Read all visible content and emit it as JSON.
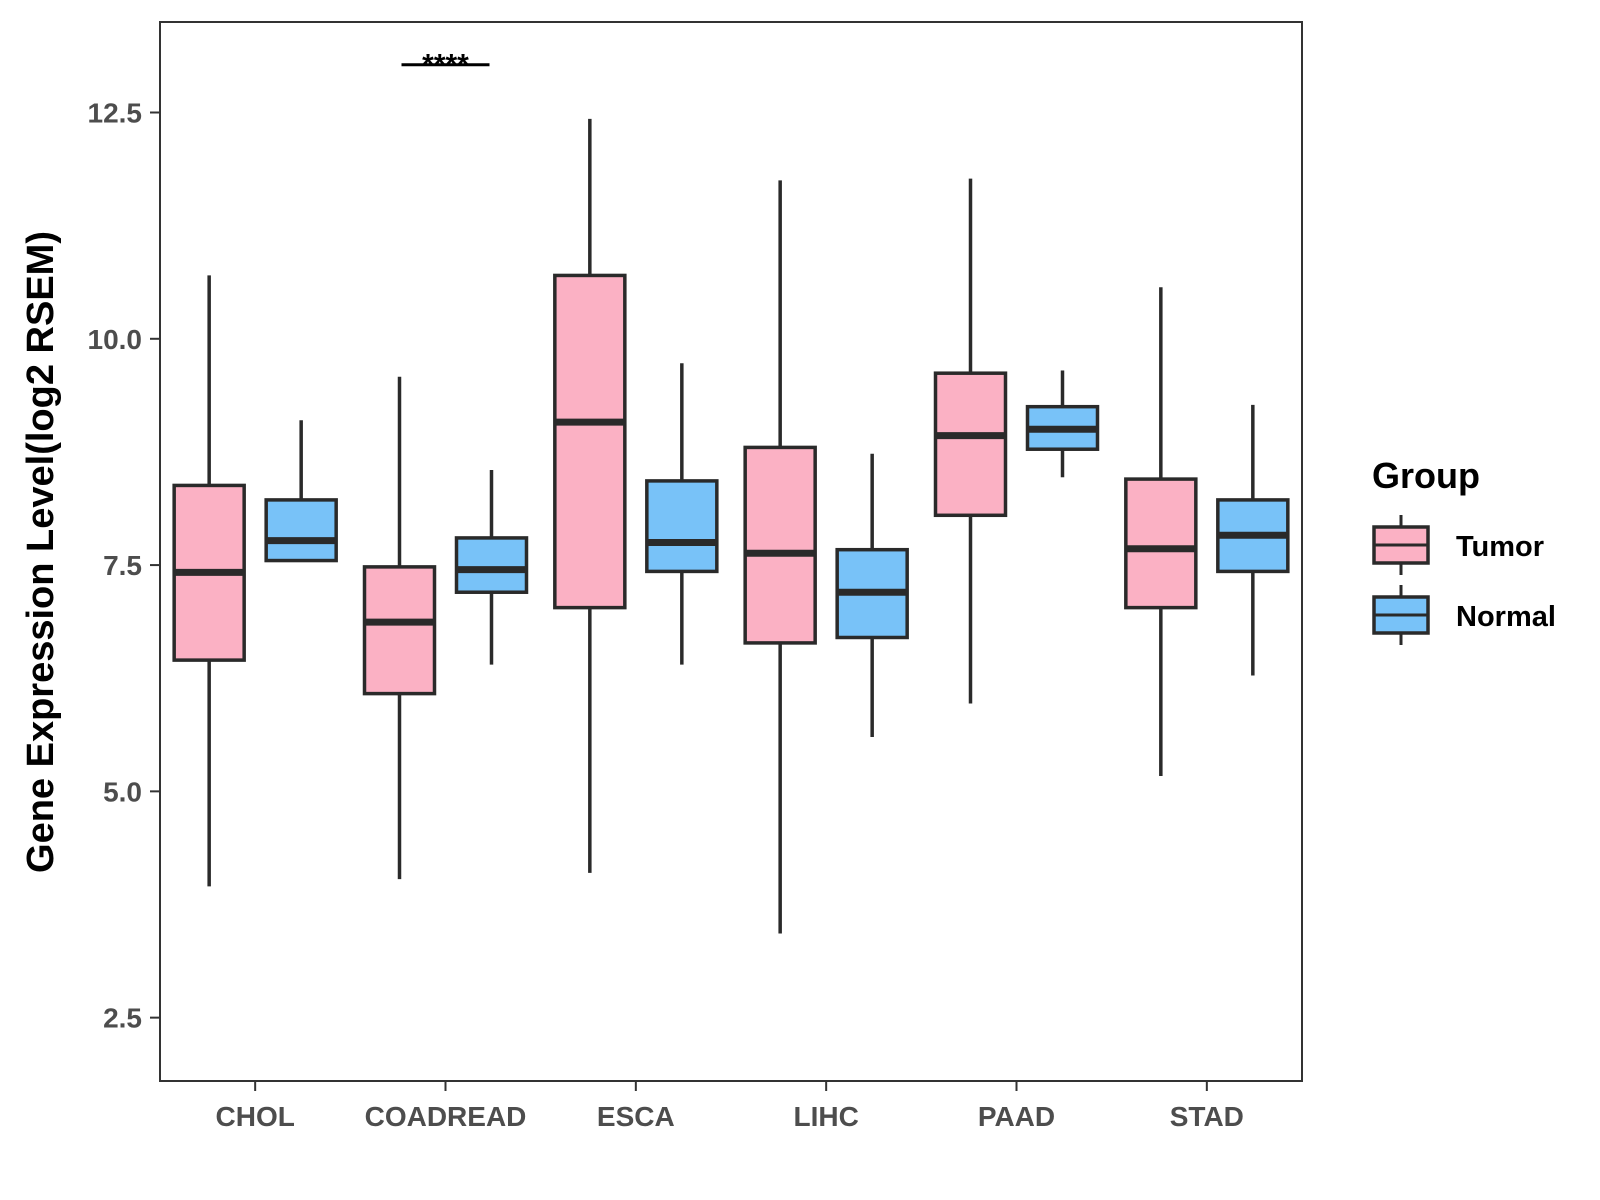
{
  "chart_data": {
    "type": "boxplot",
    "title": "",
    "xlabel": "",
    "ylabel": "Gene Expression Level(log2 RSEM)",
    "ylim": [
      1.8,
      13.5
    ],
    "yticks": [
      2.5,
      5.0,
      7.5,
      10.0,
      12.5
    ],
    "ytick_labels": [
      "2.5",
      "5.0",
      "7.5",
      "10.0",
      "12.5"
    ],
    "categories": [
      "CHOL",
      "COADREAD",
      "ESCA",
      "LIHC",
      "PAAD",
      "STAD"
    ],
    "legend": {
      "title": "Group",
      "position": "right",
      "entries": [
        "Tumor",
        "Normal"
      ]
    },
    "colors": {
      "Tumor": "#FBB1C4",
      "Normal": "#78C2F8",
      "stroke": "#2a2a2a"
    },
    "series": [
      {
        "name": "Tumor",
        "boxes": [
          {
            "min": 3.95,
            "q1": 6.45,
            "median": 7.42,
            "q3": 8.38,
            "max": 10.7
          },
          {
            "min": 4.03,
            "q1": 6.08,
            "median": 6.87,
            "q3": 7.48,
            "max": 9.58
          },
          {
            "min": 4.1,
            "q1": 7.03,
            "median": 9.08,
            "q3": 10.7,
            "max": 12.43
          },
          {
            "min": 3.43,
            "q1": 6.64,
            "median": 7.63,
            "q3": 8.8,
            "max": 11.75
          },
          {
            "min": 5.97,
            "q1": 8.05,
            "median": 8.93,
            "q3": 9.62,
            "max": 11.77
          },
          {
            "min": 5.17,
            "q1": 7.03,
            "median": 7.68,
            "q3": 8.45,
            "max": 10.57
          }
        ]
      },
      {
        "name": "Normal",
        "boxes": [
          {
            "min": 7.55,
            "q1": 7.55,
            "median": 7.77,
            "q3": 8.22,
            "max": 9.1
          },
          {
            "min": 6.4,
            "q1": 7.2,
            "median": 7.45,
            "q3": 7.8,
            "max": 8.55
          },
          {
            "min": 6.4,
            "q1": 7.43,
            "median": 7.75,
            "q3": 8.43,
            "max": 9.73
          },
          {
            "min": 5.6,
            "q1": 6.7,
            "median": 7.2,
            "q3": 7.67,
            "max": 8.73
          },
          {
            "min": 8.47,
            "q1": 8.78,
            "median": 9.0,
            "q3": 9.25,
            "max": 9.65
          },
          {
            "min": 6.28,
            "q1": 7.43,
            "median": 7.83,
            "q3": 8.22,
            "max": 9.27
          }
        ]
      }
    ],
    "annotations": [
      {
        "category": "COADREAD",
        "text": "****",
        "y": 13.05
      }
    ]
  }
}
